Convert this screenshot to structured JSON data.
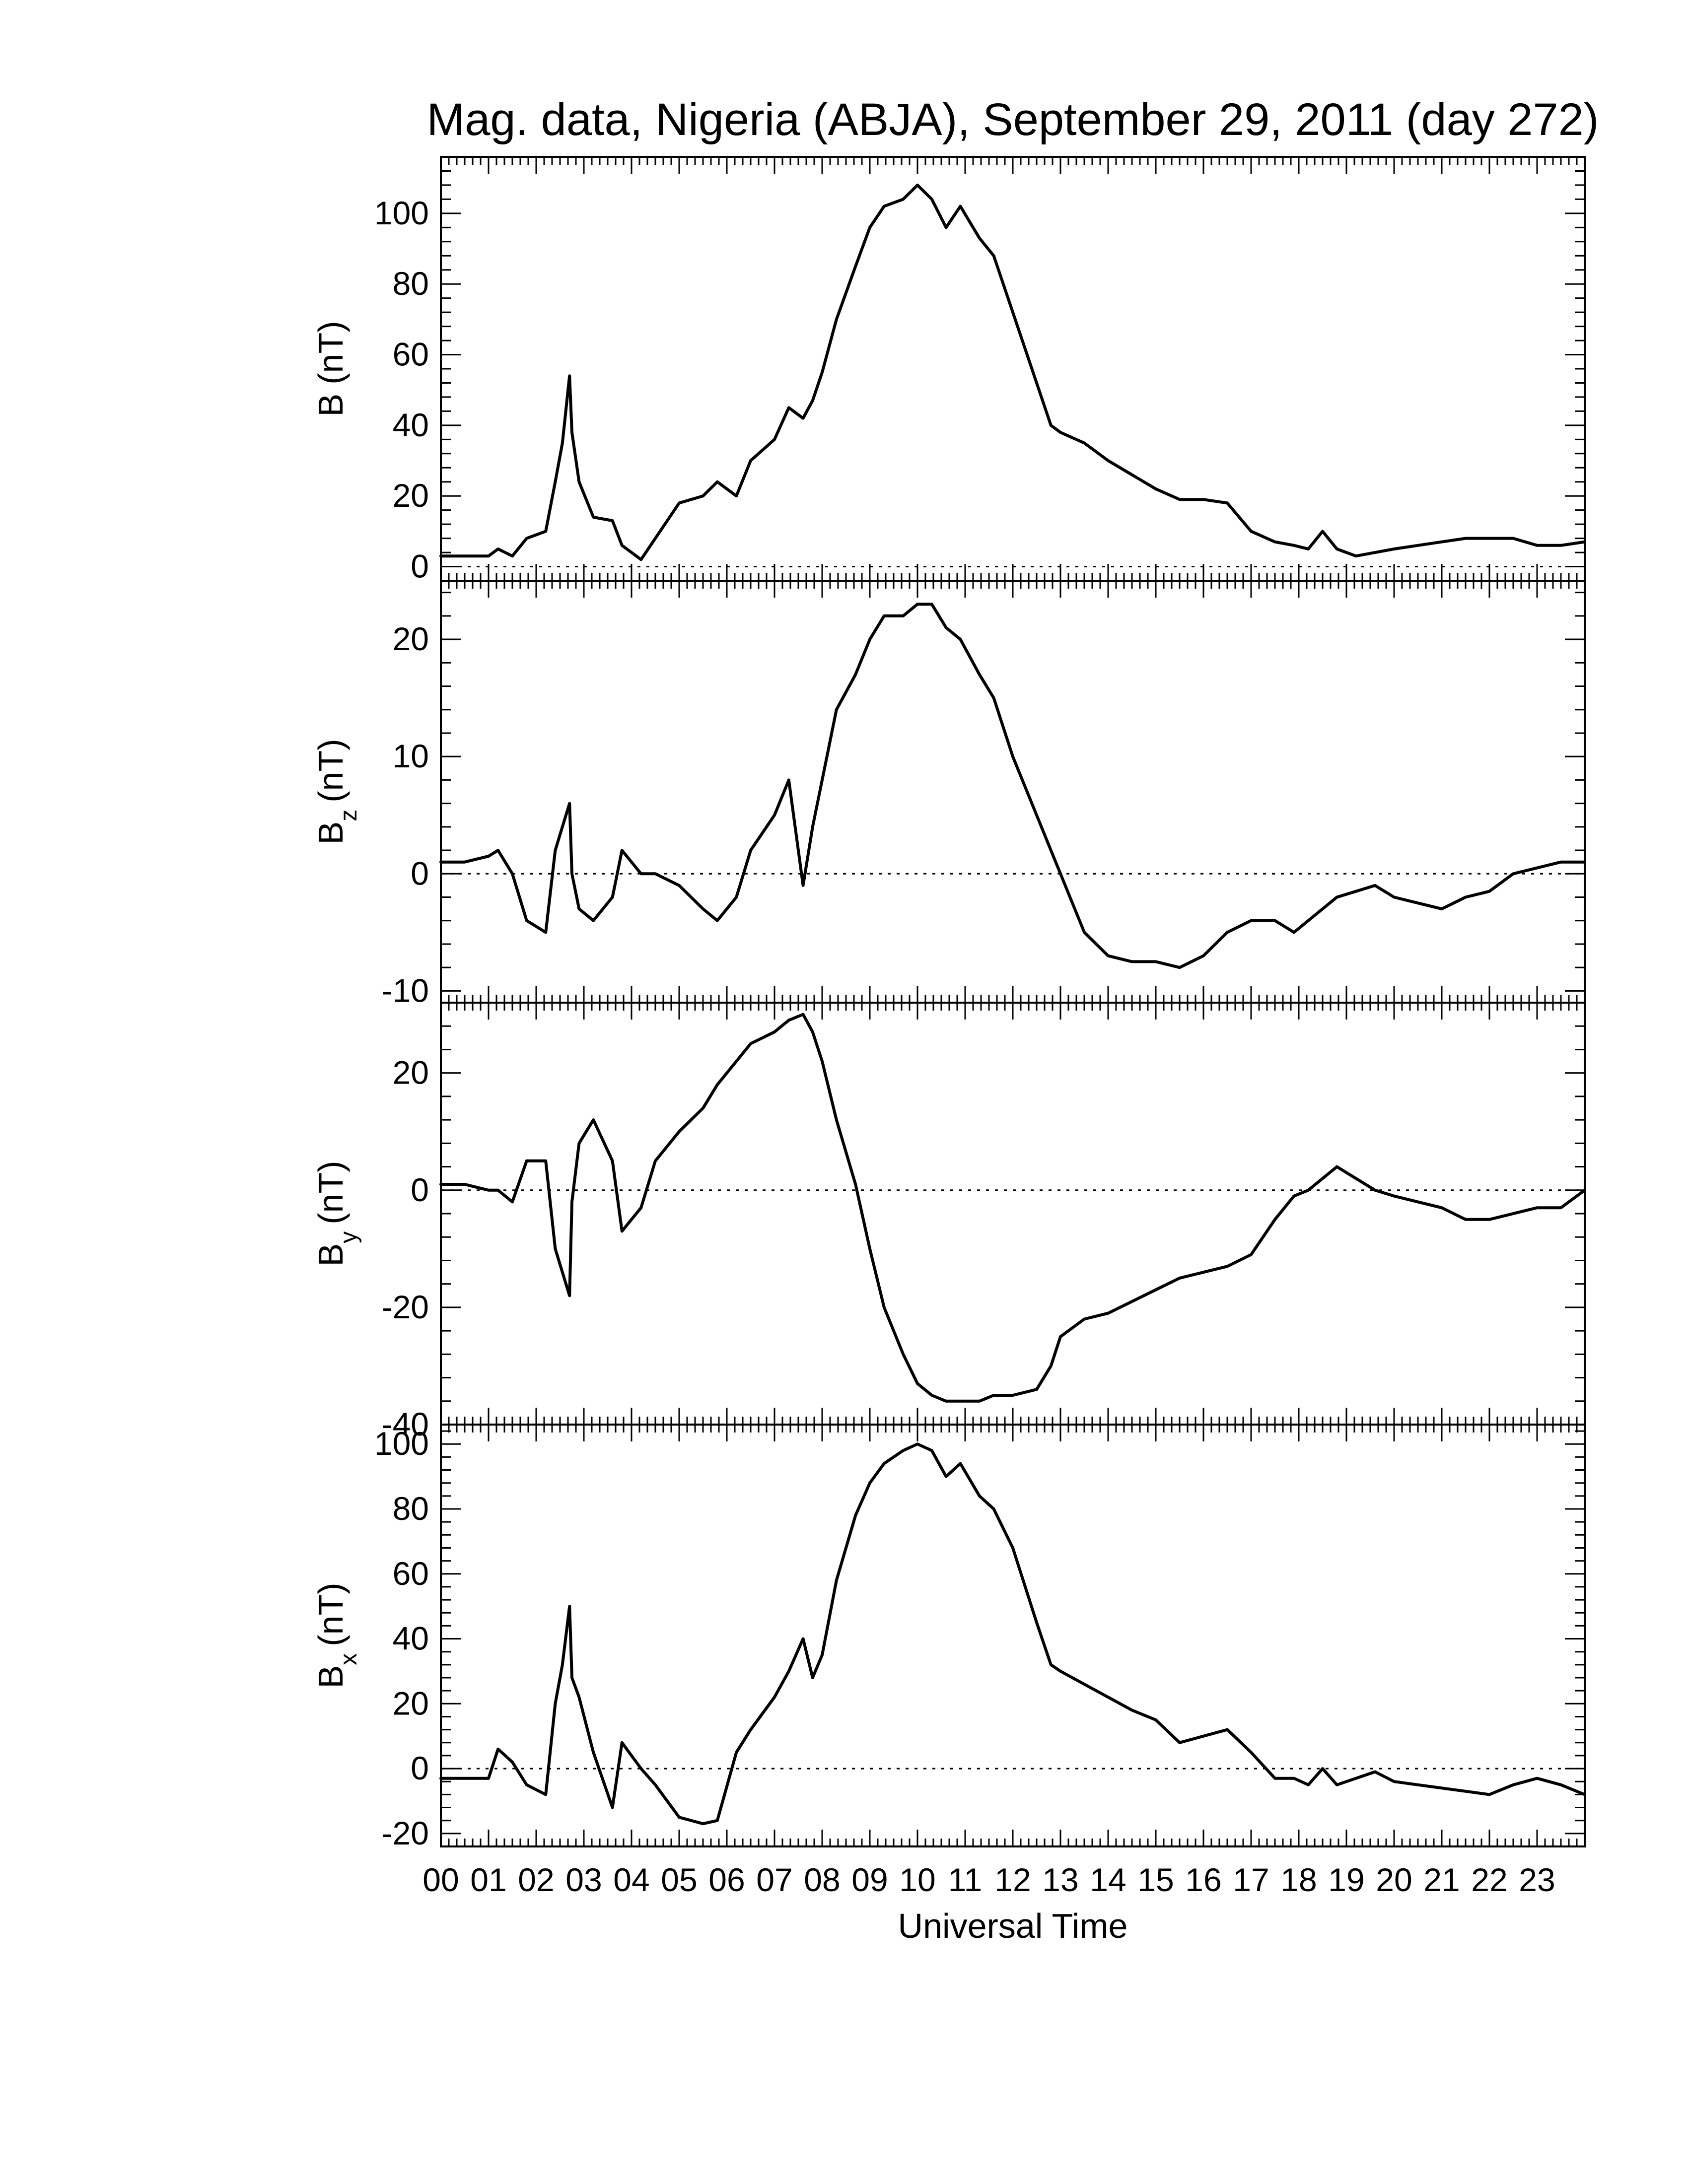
{
  "chart_data": {
    "type": "line",
    "title": "Mag. data, Nigeria (ABJA), September 29, 2011 (day 272)",
    "xlabel": "Universal Time",
    "x_tick_labels": [
      "00",
      "01",
      "02",
      "03",
      "04",
      "05",
      "06",
      "07",
      "08",
      "09",
      "10",
      "11",
      "12",
      "13",
      "14",
      "15",
      "16",
      "17",
      "18",
      "19",
      "20",
      "21",
      "22",
      "23"
    ],
    "xlim": [
      0,
      24
    ],
    "x_unit": "hours UT",
    "panels": [
      {
        "ylabel_main": "B",
        "ylabel_sub": "",
        "ylabel_unit": "(nT)",
        "ylim": [
          -4,
          116
        ],
        "yticks": [
          0,
          20,
          40,
          60,
          80,
          100
        ],
        "zero_line": true,
        "x": [
          0,
          0.5,
          1,
          1.2,
          1.5,
          1.8,
          2.2,
          2.4,
          2.55,
          2.7,
          2.75,
          2.9,
          3.2,
          3.6,
          3.8,
          4.2,
          4.5,
          5,
          5.5,
          5.8,
          6.2,
          6.5,
          7,
          7.3,
          7.6,
          7.8,
          8,
          8.3,
          8.7,
          9,
          9.3,
          9.7,
          10,
          10.3,
          10.6,
          10.9,
          11.3,
          11.6,
          12,
          12.5,
          12.8,
          13,
          13.5,
          14,
          14.5,
          15,
          15.5,
          16,
          16.5,
          17,
          17.5,
          17.9,
          18.2,
          18.5,
          18.8,
          19.2,
          19.6,
          20,
          20.5,
          21,
          21.5,
          22,
          22.5,
          23,
          23.5,
          24
        ],
        "y": [
          3,
          3,
          3,
          5,
          3,
          8,
          10,
          24,
          35,
          54,
          38,
          24,
          14,
          13,
          6,
          2,
          8,
          18,
          20,
          24,
          20,
          30,
          36,
          45,
          42,
          47,
          55,
          70,
          85,
          96,
          102,
          104,
          108,
          104,
          96,
          102,
          93,
          88,
          72,
          52,
          40,
          38,
          35,
          30,
          26,
          22,
          19,
          19,
          18,
          10,
          7,
          6,
          5,
          10,
          5,
          3,
          4,
          5,
          6,
          7,
          8,
          8,
          8,
          6,
          6,
          7
        ]
      },
      {
        "ylabel_main": "B",
        "ylabel_sub": "z",
        "ylabel_unit": "(nT)",
        "ylim": [
          -11,
          25
        ],
        "yticks": [
          -10,
          0,
          10,
          20
        ],
        "zero_line": true,
        "x": [
          0,
          0.5,
          1,
          1.2,
          1.5,
          1.8,
          2.2,
          2.4,
          2.55,
          2.7,
          2.75,
          2.9,
          3.2,
          3.6,
          3.8,
          4.2,
          4.5,
          5,
          5.5,
          5.8,
          6.2,
          6.5,
          7,
          7.3,
          7.6,
          7.8,
          8,
          8.3,
          8.7,
          9,
          9.3,
          9.7,
          10,
          10.3,
          10.6,
          10.9,
          11.3,
          11.6,
          12,
          12.5,
          12.8,
          13,
          13.5,
          14,
          14.5,
          15,
          15.5,
          16,
          16.5,
          17,
          17.5,
          17.9,
          18.2,
          18.5,
          18.8,
          19.2,
          19.6,
          20,
          20.5,
          21,
          21.5,
          22,
          22.5,
          23,
          23.5,
          24
        ],
        "y": [
          1,
          1,
          1.5,
          2,
          0,
          -4,
          -5,
          2,
          4,
          6,
          0,
          -3,
          -4,
          -2,
          2,
          0,
          0,
          -1,
          -3,
          -4,
          -2,
          2,
          5,
          8,
          -1,
          4,
          8,
          14,
          17,
          20,
          22,
          22,
          23,
          23,
          21,
          20,
          17,
          15,
          10,
          5,
          2,
          0,
          -5,
          -7,
          -7.5,
          -7.5,
          -8,
          -7,
          -5,
          -4,
          -4,
          -5,
          -4,
          -3,
          -2,
          -1.5,
          -1,
          -2,
          -2.5,
          -3,
          -2,
          -1.5,
          0,
          0.5,
          1,
          1
        ]
      },
      {
        "ylabel_main": "B",
        "ylabel_sub": "y",
        "ylabel_unit": "(nT)",
        "ylim": [
          -40,
          32
        ],
        "yticks": [
          -40,
          -20,
          0,
          20
        ],
        "zero_line": true,
        "x": [
          0,
          0.5,
          1,
          1.2,
          1.5,
          1.8,
          2.2,
          2.4,
          2.55,
          2.7,
          2.75,
          2.9,
          3.2,
          3.6,
          3.8,
          4.2,
          4.5,
          5,
          5.5,
          5.8,
          6.2,
          6.5,
          7,
          7.3,
          7.6,
          7.8,
          8,
          8.3,
          8.7,
          9,
          9.3,
          9.7,
          10,
          10.3,
          10.6,
          10.9,
          11.3,
          11.6,
          12,
          12.5,
          12.8,
          13,
          13.5,
          14,
          14.5,
          15,
          15.5,
          16,
          16.5,
          17,
          17.5,
          17.9,
          18.2,
          18.5,
          18.8,
          19.2,
          19.6,
          20,
          20.5,
          21,
          21.5,
          22,
          22.5,
          23,
          23.5,
          24
        ],
        "y": [
          1,
          1,
          0,
          0,
          -2,
          5,
          5,
          -10,
          -14,
          -18,
          -2,
          8,
          12,
          5,
          -7,
          -3,
          5,
          10,
          14,
          18,
          22,
          25,
          27,
          29,
          30,
          27,
          22,
          12,
          1,
          -10,
          -20,
          -28,
          -33,
          -35,
          -36,
          -36,
          -36,
          -35,
          -35,
          -34,
          -30,
          -25,
          -22,
          -21,
          -19,
          -17,
          -15,
          -14,
          -13,
          -11,
          -5,
          -1,
          0,
          2,
          4,
          2,
          0,
          -1,
          -2,
          -3,
          -5,
          -5,
          -4,
          -3,
          -3,
          0
        ]
      },
      {
        "ylabel_main": "B",
        "ylabel_sub": "x",
        "ylabel_unit": "(nT)",
        "ylim": [
          -24,
          106
        ],
        "yticks": [
          -20,
          0,
          20,
          40,
          60,
          80,
          100
        ],
        "zero_line": true,
        "x": [
          0,
          0.5,
          1,
          1.2,
          1.5,
          1.8,
          2.2,
          2.4,
          2.55,
          2.7,
          2.75,
          2.9,
          3.2,
          3.6,
          3.8,
          4.2,
          4.5,
          5,
          5.5,
          5.8,
          6.2,
          6.5,
          7,
          7.3,
          7.6,
          7.8,
          8,
          8.3,
          8.7,
          9,
          9.3,
          9.7,
          10,
          10.3,
          10.6,
          10.9,
          11.3,
          11.6,
          12,
          12.5,
          12.8,
          13,
          13.5,
          14,
          14.5,
          15,
          15.5,
          16,
          16.5,
          17,
          17.5,
          17.9,
          18.2,
          18.5,
          18.8,
          19.2,
          19.6,
          20,
          20.5,
          21,
          21.5,
          22,
          22.5,
          23,
          23.5,
          24
        ],
        "y": [
          -3,
          -3,
          -3,
          6,
          2,
          -5,
          -8,
          20,
          32,
          50,
          28,
          22,
          5,
          -12,
          8,
          0,
          -5,
          -15,
          -17,
          -16,
          5,
          12,
          22,
          30,
          40,
          28,
          35,
          58,
          78,
          88,
          94,
          98,
          100,
          98,
          90,
          94,
          84,
          80,
          68,
          45,
          32,
          30,
          26,
          22,
          18,
          15,
          8,
          10,
          12,
          5,
          -3,
          -3,
          -5,
          0,
          -5,
          -3,
          -1,
          -4,
          -5,
          -6,
          -7,
          -8,
          -5,
          -3,
          -5,
          -8
        ]
      }
    ]
  }
}
